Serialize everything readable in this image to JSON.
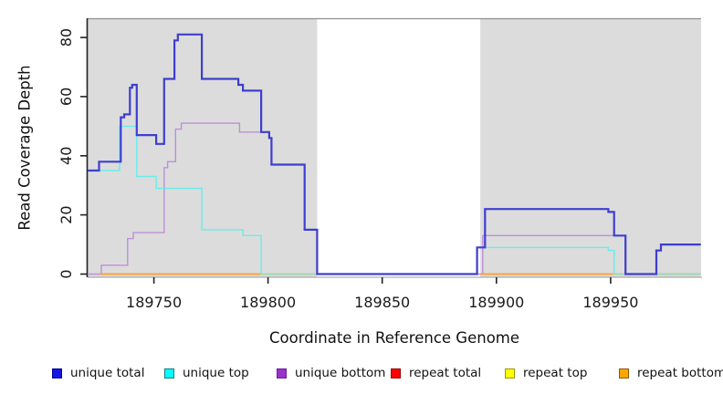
{
  "chart_data": {
    "type": "line",
    "subtype": "step-coverage",
    "title": "",
    "xlabel": "Coordinate in Reference Genome",
    "ylabel": "Read Coverage Depth",
    "xlim": [
      189721,
      189990
    ],
    "ylim": [
      0,
      86.5
    ],
    "x_ticks": [
      189750,
      189800,
      189850,
      189900,
      189950
    ],
    "y_ticks": [
      0,
      20,
      40,
      60,
      80
    ],
    "grid": false,
    "background_shading": {
      "color": "#DCDCDC",
      "regions": [
        [
          189721,
          189821.5
        ],
        [
          189892.9,
          189989.6
        ]
      ]
    },
    "series": [
      {
        "key": "unique-bottom",
        "name": "unique bottom",
        "color": "#BE8FD8",
        "line_width": 1.4,
        "segments": [
          [
            [
              189721,
              0
            ],
            [
              189727,
              3
            ],
            [
              189738.5,
              12
            ],
            [
              189741,
              14
            ],
            [
              189754.5,
              36
            ],
            [
              189756,
              38
            ],
            [
              189759.5,
              49
            ],
            [
              189762,
              51
            ],
            [
              189787.5,
              48
            ],
            [
              189800.5,
              46
            ],
            [
              189801.5,
              37
            ],
            [
              189816,
              15
            ],
            [
              189821.5,
              0
            ],
            [
              189894,
              13
            ],
            [
              189956.5,
              0
            ],
            [
              189989.5,
              0
            ]
          ]
        ]
      },
      {
        "key": "repeat-bottom",
        "name": "repeat bottom",
        "color": "#FF9E2C",
        "line_width": 1.8,
        "segments": [
          [
            [
              189726.5,
              0
            ],
            [
              189797,
              0
            ]
          ],
          [
            [
              189893,
              0
            ],
            [
              189951,
              0
            ]
          ]
        ]
      },
      {
        "key": "unique-top",
        "name": "unique top",
        "color": "#6CEBEB",
        "line_width": 1.4,
        "segments": [
          [
            [
              189721,
              35
            ],
            [
              189735,
              50
            ],
            [
              189742.5,
              33
            ],
            [
              189751,
              29
            ],
            [
              189771,
              15
            ],
            [
              189789,
              13
            ],
            [
              189797,
              0
            ],
            [
              189891.5,
              9
            ],
            [
              189949,
              8
            ],
            [
              189951.5,
              0
            ],
            [
              189989.5,
              0
            ]
          ]
        ]
      },
      {
        "key": "zero-baseline-green",
        "name": "baseline (unlabeled green)",
        "color": "#A3D6A3",
        "line_width": 1.5,
        "segments": [
          [
            [
              189797,
              0
            ],
            [
              189821.5,
              0
            ]
          ],
          [
            [
              189951,
              0
            ],
            [
              189989.5,
              0
            ]
          ]
        ]
      },
      {
        "key": "unique-total",
        "name": "unique total",
        "color": "#3E3ECF",
        "line_width": 2.2,
        "segments": [
          [
            [
              189721,
              35
            ],
            [
              189726,
              38
            ],
            [
              189735.5,
              53
            ],
            [
              189737,
              54
            ],
            [
              189739.5,
              63
            ],
            [
              189740.5,
              64
            ],
            [
              189742.5,
              47
            ],
            [
              189751,
              44
            ],
            [
              189754.5,
              66
            ],
            [
              189759,
              79
            ],
            [
              189760.5,
              81
            ],
            [
              189771,
              66
            ],
            [
              189787,
              64
            ],
            [
              189789,
              62
            ],
            [
              189797,
              48
            ],
            [
              189800.5,
              46
            ],
            [
              189801.5,
              37
            ],
            [
              189816,
              15
            ],
            [
              189821.5,
              0
            ],
            [
              189891.5,
              9
            ],
            [
              189895,
              22
            ],
            [
              189949,
              21
            ],
            [
              189951.5,
              13
            ],
            [
              189956.5,
              0
            ],
            [
              189970,
              8
            ],
            [
              189972,
              10
            ],
            [
              189989.5,
              10
            ]
          ]
        ]
      }
    ],
    "legend": {
      "position": "bottom",
      "items": [
        {
          "key": "unique-total",
          "label": "unique total",
          "fill": "#1414E1",
          "border": "#0000A0"
        },
        {
          "key": "unique-top",
          "label": "unique top",
          "fill": "#00FFFF",
          "border": "#007F7F"
        },
        {
          "key": "unique-bottom",
          "label": "unique bottom",
          "fill": "#9932CC",
          "border": "#6A1B9A"
        },
        {
          "key": "repeat-total",
          "label": "repeat total",
          "fill": "#FF0000",
          "border": "#990000"
        },
        {
          "key": "repeat-top",
          "label": "repeat top",
          "fill": "#FFFF00",
          "border": "#999900"
        },
        {
          "key": "repeat-bottom",
          "label": "repeat bottom",
          "fill": "#FFA500",
          "border": "#8B5A00"
        }
      ]
    }
  }
}
